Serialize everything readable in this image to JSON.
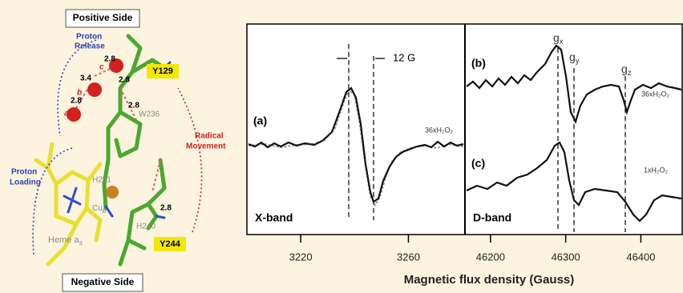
{
  "structure": {
    "positive_side": "Positive Side",
    "negative_side": "Negative Side",
    "proton_release": [
      "Proton",
      "Release"
    ],
    "proton_loading": [
      "Proton",
      "Loading"
    ],
    "radical_movement": [
      "Radical",
      "Movement"
    ],
    "y129": "Y129",
    "y244": "Y244",
    "w236": "W236",
    "h291": "H291",
    "h240": "H240",
    "cub": [
      "Cu",
      "B"
    ],
    "heme": [
      "Heme a",
      "3"
    ],
    "waters": [
      "a",
      "b",
      "c"
    ],
    "distances": [
      "2.8",
      "3.4",
      "2.8",
      "2.8",
      "2.8",
      "2.8"
    ]
  },
  "spectra": {
    "x_label": "Magnetic flux density (Gauss)",
    "panels": [
      {
        "band": "X-band",
        "xlim": [
          3200,
          3281
        ],
        "xticks": [
          3220,
          3260
        ],
        "traces": [
          {
            "label": "(a)",
            "conc": "36xH₂O₂"
          }
        ],
        "annotation": "12 G"
      },
      {
        "band": "D-band",
        "xlim": [
          46166,
          46455
        ],
        "xticks": [
          46200,
          46300,
          46400
        ],
        "traces": [
          {
            "label": "(b)",
            "conc": "36xH₂O₂"
          },
          {
            "label": "(c)",
            "conc": "1xH₂O₂"
          }
        ],
        "g_labels": [
          [
            "g",
            "x"
          ],
          [
            "g",
            "y"
          ],
          [
            "g",
            "z"
          ]
        ]
      }
    ]
  }
}
